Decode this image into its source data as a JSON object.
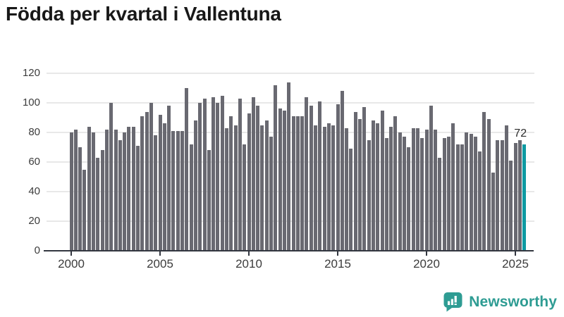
{
  "title": "Födda per kvartal i Vallentuna",
  "chart_data": {
    "type": "bar",
    "title": "Födda per kvartal i Vallentuna",
    "frequency": "quarterly",
    "x_start": "2000 Q1",
    "x_end": "2025 Q3",
    "values": [
      80,
      82,
      70,
      55,
      84,
      80,
      63,
      68,
      82,
      100,
      82,
      75,
      80,
      84,
      84,
      71,
      91,
      94,
      100,
      78,
      92,
      86,
      98,
      81,
      81,
      81,
      110,
      72,
      88,
      100,
      103,
      68,
      104,
      100,
      105,
      83,
      91,
      85,
      103,
      72,
      93,
      104,
      98,
      85,
      88,
      77,
      112,
      96,
      95,
      114,
      91,
      91,
      91,
      104,
      98,
      85,
      101,
      84,
      86,
      85,
      99,
      108,
      83,
      69,
      94,
      89,
      97,
      75,
      88,
      86,
      95,
      76,
      84,
      91,
      80,
      77,
      70,
      83,
      83,
      76,
      82,
      98,
      82,
      63,
      76,
      77,
      86,
      72,
      72,
      80,
      79,
      77,
      67,
      94,
      89,
      53,
      75,
      75,
      85,
      61,
      73,
      75,
      72
    ],
    "highlight": {
      "period": "2025 Q3",
      "value": 72,
      "label": "72"
    },
    "ylim": [
      0,
      120
    ],
    "yticks": [
      0,
      20,
      40,
      60,
      80,
      100,
      120
    ],
    "xticks": [
      "2000",
      "2005",
      "2010",
      "2015",
      "2020",
      "2025"
    ],
    "grid": "horizontal",
    "legend": "none",
    "bar_color": "#696971",
    "highlight_color": "#0E9AA2",
    "axis_color": "#333740",
    "grid_color": "#E8E8E8",
    "label_color": "#3C3C3C"
  },
  "branding": {
    "logo_text": "Newsworthy",
    "logo_color": "#2E9C93"
  }
}
